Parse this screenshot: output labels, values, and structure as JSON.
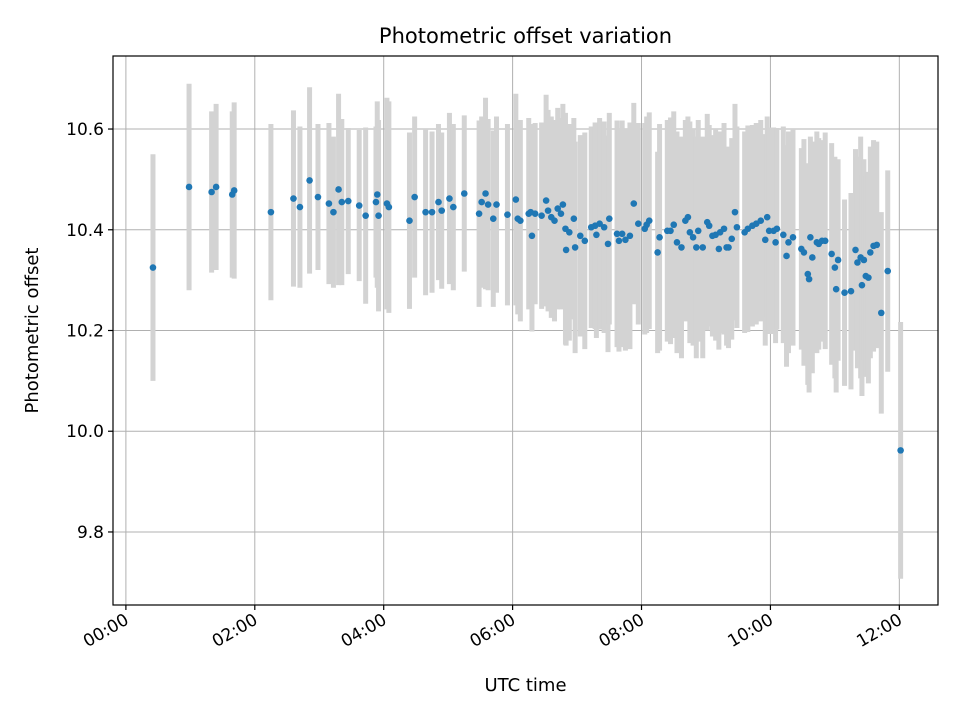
{
  "chart_data": {
    "type": "scatter",
    "title": "Photometric offset variation",
    "xlabel": "UTC time",
    "ylabel": "Photometric offset",
    "x_unit": "hours (UTC)",
    "xlim": [
      -0.2,
      12.6
    ],
    "ylim": [
      9.655,
      10.745
    ],
    "grid": true,
    "x_tick_values": [
      0,
      2,
      4,
      6,
      8,
      10,
      12
    ],
    "x_tick_labels": [
      "00:00",
      "02:00",
      "04:00",
      "06:00",
      "08:00",
      "10:00",
      "12:00"
    ],
    "y_tick_values": [
      9.8,
      10.0,
      10.2,
      10.4,
      10.6
    ],
    "y_tick_labels": [
      "9.8",
      "10.0",
      "10.2",
      "10.4",
      "10.6"
    ],
    "marker_color": "#1f77b4",
    "errorbar_color": "#d3d3d3",
    "series": [
      {
        "name": "offset",
        "points": [
          [
            0.42,
            10.325,
            0.225
          ],
          [
            0.98,
            10.485,
            0.205
          ],
          [
            1.33,
            10.475,
            0.16
          ],
          [
            1.4,
            10.485,
            0.165
          ],
          [
            1.65,
            10.47,
            0.165
          ],
          [
            1.68,
            10.478,
            0.175
          ],
          [
            2.25,
            10.435,
            0.175
          ],
          [
            2.6,
            10.462,
            0.175
          ],
          [
            2.7,
            10.445,
            0.16
          ],
          [
            2.85,
            10.498,
            0.185
          ],
          [
            2.98,
            10.465,
            0.145
          ],
          [
            3.15,
            10.452,
            0.16
          ],
          [
            3.22,
            10.435,
            0.15
          ],
          [
            3.3,
            10.48,
            0.19
          ],
          [
            3.35,
            10.455,
            0.165
          ],
          [
            3.45,
            10.457,
            0.145
          ],
          [
            3.62,
            10.448,
            0.15
          ],
          [
            3.72,
            10.428,
            0.175
          ],
          [
            3.88,
            10.455,
            0.15
          ],
          [
            3.9,
            10.47,
            0.185
          ],
          [
            3.92,
            10.428,
            0.19
          ],
          [
            4.05,
            10.452,
            0.21
          ],
          [
            4.08,
            10.445,
            0.21
          ],
          [
            4.4,
            10.418,
            0.175
          ],
          [
            4.48,
            10.465,
            0.16
          ],
          [
            4.65,
            10.435,
            0.165
          ],
          [
            4.75,
            10.435,
            0.16
          ],
          [
            4.85,
            10.455,
            0.155
          ],
          [
            4.9,
            10.438,
            0.155
          ],
          [
            5.02,
            10.462,
            0.17
          ],
          [
            5.08,
            10.445,
            0.165
          ],
          [
            5.25,
            10.472,
            0.155
          ],
          [
            5.48,
            10.432,
            0.185
          ],
          [
            5.52,
            10.455,
            0.17
          ],
          [
            5.58,
            10.472,
            0.19
          ],
          [
            5.62,
            10.45,
            0.17
          ],
          [
            5.7,
            10.422,
            0.175
          ],
          [
            5.75,
            10.45,
            0.175
          ],
          [
            5.92,
            10.43,
            0.18
          ],
          [
            6.05,
            10.46,
            0.21
          ],
          [
            6.08,
            10.422,
            0.19
          ],
          [
            6.12,
            10.418,
            0.2
          ],
          [
            6.25,
            10.432,
            0.19
          ],
          [
            6.28,
            10.435,
            0.175
          ],
          [
            6.3,
            10.388,
            0.19
          ],
          [
            6.35,
            10.432,
            0.18
          ],
          [
            6.45,
            10.428,
            0.185
          ],
          [
            6.52,
            10.458,
            0.21
          ],
          [
            6.55,
            10.438,
            0.2
          ],
          [
            6.6,
            10.425,
            0.2
          ],
          [
            6.65,
            10.418,
            0.2
          ],
          [
            6.7,
            10.442,
            0.2
          ],
          [
            6.75,
            10.432,
            0.19
          ],
          [
            6.78,
            10.45,
            0.2
          ],
          [
            6.82,
            10.402,
            0.23
          ],
          [
            6.83,
            10.36,
            0.19
          ],
          [
            6.88,
            10.395,
            0.215
          ],
          [
            6.95,
            10.422,
            0.2
          ],
          [
            6.97,
            10.365,
            0.21
          ],
          [
            7.05,
            10.388,
            0.2
          ],
          [
            7.12,
            10.378,
            0.215
          ],
          [
            7.22,
            10.405,
            0.2
          ],
          [
            7.28,
            10.408,
            0.205
          ],
          [
            7.3,
            10.39,
            0.205
          ],
          [
            7.35,
            10.412,
            0.21
          ],
          [
            7.42,
            10.405,
            0.21
          ],
          [
            7.48,
            10.372,
            0.215
          ],
          [
            7.5,
            10.422,
            0.21
          ],
          [
            7.62,
            10.392,
            0.225
          ],
          [
            7.65,
            10.378,
            0.22
          ],
          [
            7.7,
            10.392,
            0.225
          ],
          [
            7.75,
            10.38,
            0.22
          ],
          [
            7.82,
            10.388,
            0.225
          ],
          [
            7.88,
            10.452,
            0.2
          ],
          [
            7.95,
            10.412,
            0.2
          ],
          [
            8.05,
            10.402,
            0.21
          ],
          [
            8.08,
            10.41,
            0.215
          ],
          [
            8.12,
            10.418,
            0.215
          ],
          [
            8.25,
            10.355,
            0.2
          ],
          [
            8.28,
            10.385,
            0.225
          ],
          [
            8.4,
            10.398,
            0.22
          ],
          [
            8.45,
            10.398,
            0.225
          ],
          [
            8.5,
            10.41,
            0.225
          ],
          [
            8.55,
            10.375,
            0.22
          ],
          [
            8.62,
            10.365,
            0.22
          ],
          [
            8.68,
            10.418,
            0.2
          ],
          [
            8.72,
            10.425,
            0.2
          ],
          [
            8.75,
            10.395,
            0.22
          ],
          [
            8.8,
            10.385,
            0.215
          ],
          [
            8.85,
            10.365,
            0.22
          ],
          [
            8.88,
            10.398,
            0.22
          ],
          [
            8.95,
            10.365,
            0.22
          ],
          [
            9.02,
            10.415,
            0.215
          ],
          [
            9.05,
            10.408,
            0.2
          ],
          [
            9.1,
            10.388,
            0.2
          ],
          [
            9.15,
            10.39,
            0.21
          ],
          [
            9.2,
            10.362,
            0.2
          ],
          [
            9.22,
            10.395,
            0.2
          ],
          [
            9.28,
            10.402,
            0.21
          ],
          [
            9.32,
            10.365,
            0.195
          ],
          [
            9.35,
            10.365,
            0.2
          ],
          [
            9.4,
            10.382,
            0.2
          ],
          [
            9.45,
            10.435,
            0.215
          ],
          [
            9.48,
            10.405,
            0.2
          ],
          [
            9.6,
            10.395,
            0.2
          ],
          [
            9.65,
            10.402,
            0.205
          ],
          [
            9.72,
            10.408,
            0.2
          ],
          [
            9.78,
            10.412,
            0.2
          ],
          [
            9.85,
            10.418,
            0.2
          ],
          [
            9.92,
            10.38,
            0.21
          ],
          [
            9.95,
            10.425,
            0.2
          ],
          [
            9.98,
            10.398,
            0.205
          ],
          [
            10.05,
            10.398,
            0.205
          ],
          [
            10.08,
            10.375,
            0.2
          ],
          [
            10.1,
            10.402,
            0.2
          ],
          [
            10.2,
            10.39,
            0.215
          ],
          [
            10.25,
            10.348,
            0.22
          ],
          [
            10.28,
            10.375,
            0.22
          ],
          [
            10.35,
            10.385,
            0.215
          ],
          [
            10.48,
            10.362,
            0.2
          ],
          [
            10.52,
            10.355,
            0.225
          ],
          [
            10.58,
            10.312,
            0.22
          ],
          [
            10.6,
            10.302,
            0.225
          ],
          [
            10.62,
            10.385,
            0.2
          ],
          [
            10.65,
            10.345,
            0.23
          ],
          [
            10.72,
            10.375,
            0.22
          ],
          [
            10.75,
            10.372,
            0.21
          ],
          [
            10.8,
            10.378,
            0.2
          ],
          [
            10.85,
            10.378,
            0.215
          ],
          [
            10.95,
            10.352,
            0.22
          ],
          [
            11.0,
            10.325,
            0.22
          ],
          [
            11.02,
            10.282,
            0.205
          ],
          [
            11.05,
            10.34,
            0.2
          ],
          [
            11.15,
            10.275,
            0.185
          ],
          [
            11.25,
            10.278,
            0.195
          ],
          [
            11.32,
            10.36,
            0.2
          ],
          [
            11.35,
            10.335,
            0.21
          ],
          [
            11.4,
            10.345,
            0.24
          ],
          [
            11.42,
            10.29,
            0.22
          ],
          [
            11.45,
            10.34,
            0.2
          ],
          [
            11.48,
            10.308,
            0.2
          ],
          [
            11.52,
            10.305,
            0.21
          ],
          [
            11.55,
            10.355,
            0.21
          ],
          [
            11.6,
            10.368,
            0.21
          ],
          [
            11.65,
            10.37,
            0.205
          ],
          [
            11.72,
            10.235,
            0.2
          ],
          [
            11.82,
            10.318,
            0.2
          ],
          [
            12.02,
            9.962,
            0.255
          ]
        ]
      }
    ]
  }
}
